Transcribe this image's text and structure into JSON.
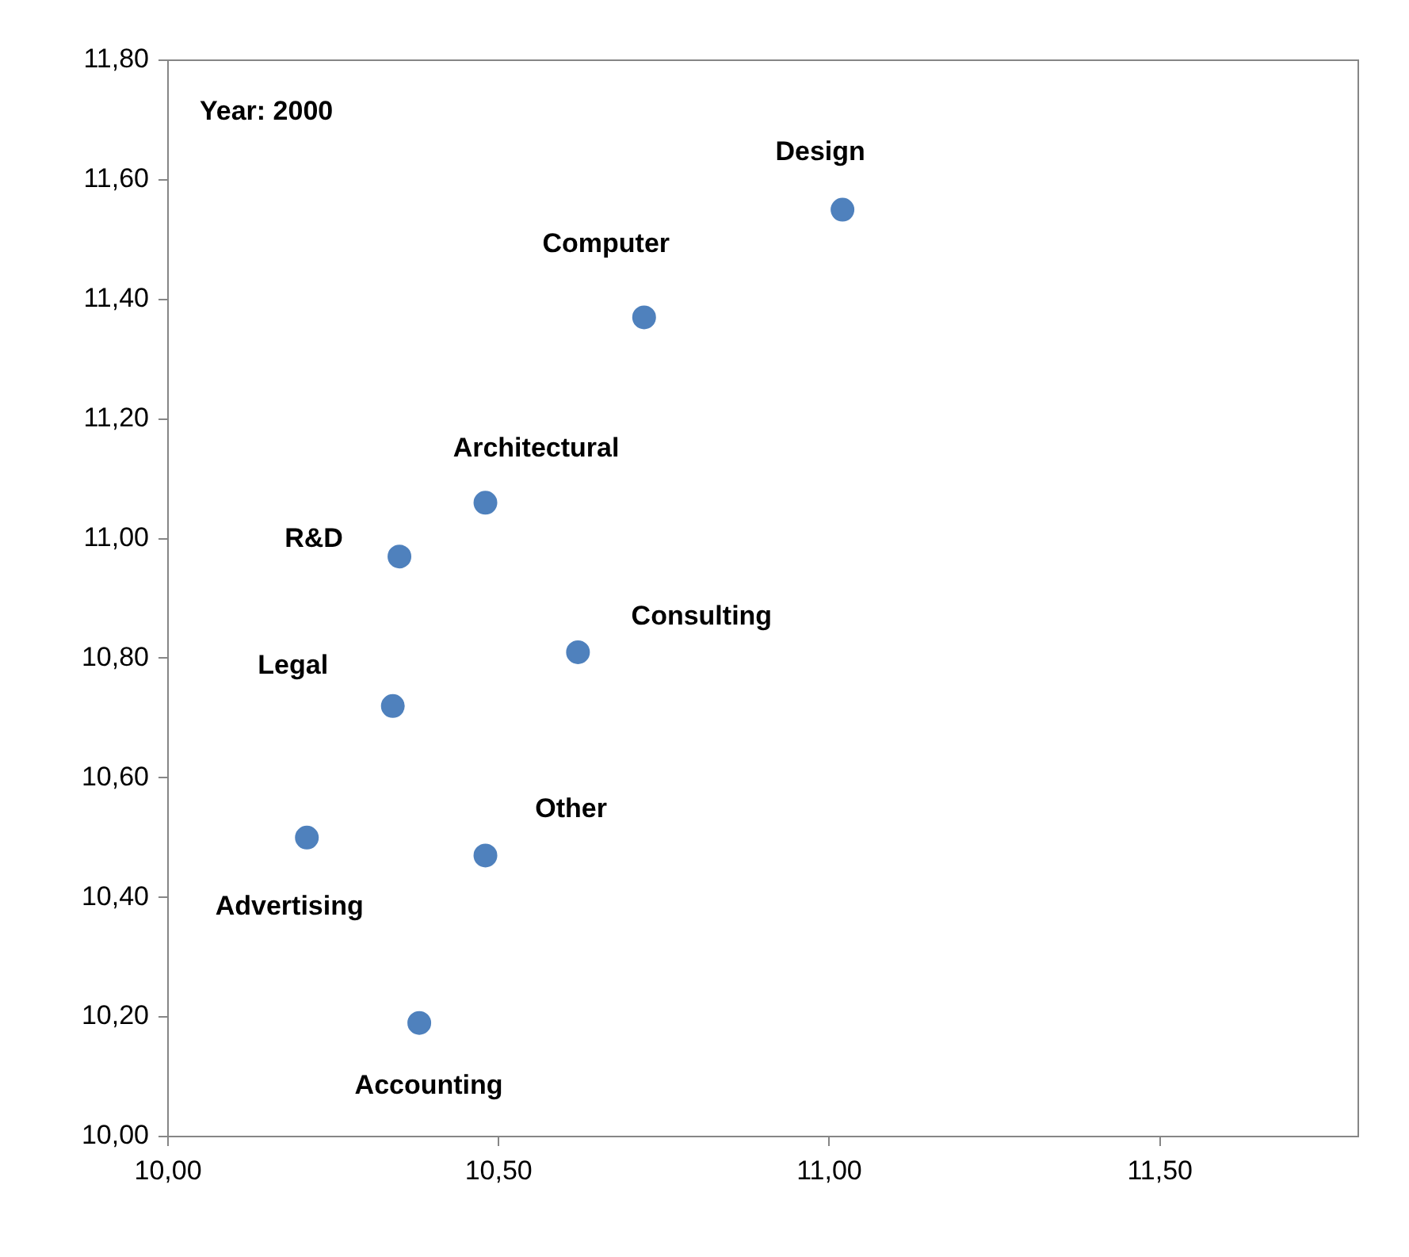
{
  "chart_data": {
    "type": "scatter",
    "x": [
      11.02,
      10.72,
      10.48,
      10.35,
      10.62,
      10.34,
      10.21,
      10.48,
      10.38
    ],
    "series": [
      {
        "color": "#4f81bd",
        "values": [
          11.55,
          11.37,
          11.06,
          10.97,
          10.81,
          10.72,
          10.5,
          10.47,
          10.19
        ]
      }
    ],
    "xlim": [
      10,
      11.8
    ],
    "ylim": [
      10,
      11.8
    ],
    "xticks": [
      {
        "value": 10,
        "label": "10,00"
      },
      {
        "value": 10.5,
        "label": "10,50"
      },
      {
        "value": 11,
        "label": "11,00"
      },
      {
        "value": 11.5,
        "label": "11,50"
      }
    ],
    "yticks": [
      {
        "value": 10,
        "label": "10,00"
      },
      {
        "value": 10.2,
        "label": "10,20"
      },
      {
        "value": 10.4,
        "label": "10,40"
      },
      {
        "value": 10.6,
        "label": "10,60"
      },
      {
        "value": 10.8,
        "label": "10,80"
      },
      {
        "value": 11,
        "label": "11,00"
      },
      {
        "value": 11.2,
        "label": "11,20"
      },
      {
        "value": 11.4,
        "label": "11,40"
      },
      {
        "value": 11.6,
        "label": "11,60"
      },
      {
        "value": 11.8,
        "label": "11,80"
      }
    ],
    "annotations": [
      "Year: 2000",
      {
        "text": "Design",
        "x": 11.02,
        "y": 11.55
      },
      {
        "text": "Computer",
        "x": 10.72,
        "y": 11.37
      },
      {
        "text": "Architectural",
        "x": 10.48,
        "y": 11.06
      },
      {
        "text": "R&D",
        "x": 10.35,
        "y": 10.97
      },
      {
        "text": "Consulting",
        "x": 10.62,
        "y": 10.81
      },
      {
        "text": "Legal",
        "x": 10.34,
        "y": 10.72
      },
      {
        "text": "Advertising",
        "x": 10.21,
        "y": 10.5
      },
      {
        "text": "Other",
        "x": 10.48,
        "y": 10.47
      },
      {
        "text": "Accounting",
        "x": 10.38,
        "y": 10.19
      }
    ],
    "marker": "circle",
    "grid": false,
    "legend": false
  }
}
